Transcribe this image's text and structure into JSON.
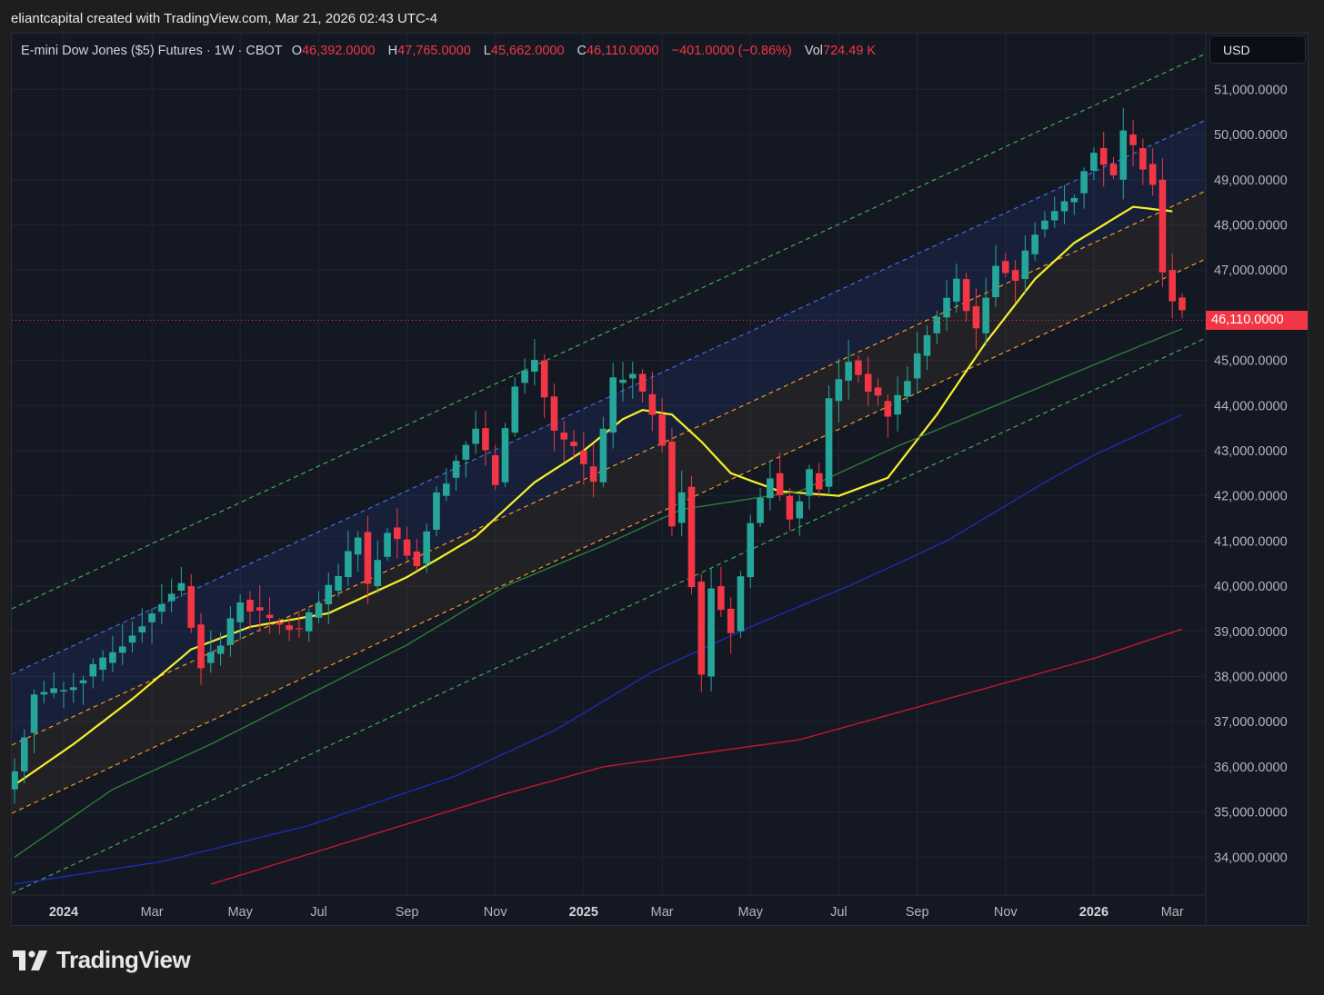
{
  "caption": "eliantcapital created with TradingView.com, Mar 21, 2026 02:43 UTC-4",
  "legend": {
    "symbol": "E-mini Dow Jones ($5) Futures · 1W · CBOT",
    "open_label": "O",
    "open": "46,392.0000",
    "high_label": "H",
    "high": "47,765.0000",
    "low_label": "L",
    "low": "45,662.0000",
    "close_label": "C",
    "close": "46,110.0000",
    "change": "−401.0000 (−0.86%)",
    "vol_label": "Vol",
    "vol": "724.49 K"
  },
  "currency": "USD",
  "last_price_label": "46,110.0000",
  "brand": "TradingView",
  "colors": {
    "up": "#26a69a",
    "down": "#f23645",
    "ma_fast": "#f5f12a",
    "ma_mid": "#2e7d32",
    "ma_slow": "#1f2bb0",
    "ma_long": "#c0182c"
  },
  "chart_data": {
    "type": "candlestick",
    "timeframe": "1W",
    "y_range": [
      33400,
      51800
    ],
    "y_ticks": [
      "34,000.0000",
      "35,000.0000",
      "36,000.0000",
      "37,000.0000",
      "38,000.0000",
      "39,000.0000",
      "40,000.0000",
      "41,000.0000",
      "42,000.0000",
      "43,000.0000",
      "44,000.0000",
      "45,000.0000",
      "46,000.0000",
      "47,000.0000",
      "48,000.0000",
      "49,000.0000",
      "50,000.0000",
      "51,000.0000"
    ],
    "x_ticks": [
      {
        "label": "2024",
        "bold": true,
        "week": 5
      },
      {
        "label": "Mar",
        "bold": false,
        "week": 14
      },
      {
        "label": "May",
        "bold": false,
        "week": 23
      },
      {
        "label": "Jul",
        "bold": false,
        "week": 31
      },
      {
        "label": "Sep",
        "bold": false,
        "week": 40
      },
      {
        "label": "Nov",
        "bold": false,
        "week": 49
      },
      {
        "label": "2025",
        "bold": true,
        "week": 58
      },
      {
        "label": "Mar",
        "bold": false,
        "week": 66
      },
      {
        "label": "May",
        "bold": false,
        "week": 75
      },
      {
        "label": "Jul",
        "bold": false,
        "week": 84
      },
      {
        "label": "Sep",
        "bold": false,
        "week": 92
      },
      {
        "label": "Nov",
        "bold": false,
        "week": 101
      },
      {
        "label": "2026",
        "bold": true,
        "week": 110
      },
      {
        "label": "Mar",
        "bold": false,
        "week": 118
      }
    ],
    "waypoints": [
      [
        0,
        35900
      ],
      [
        2,
        37600
      ],
      [
        5,
        37700
      ],
      [
        9,
        38300
      ],
      [
        13,
        39200
      ],
      [
        16,
        39900
      ],
      [
        17,
        40000
      ],
      [
        19,
        38300
      ],
      [
        21,
        38700
      ],
      [
        23,
        39700
      ],
      [
        26,
        39200
      ],
      [
        29,
        39000
      ],
      [
        31,
        39600
      ],
      [
        33,
        40200
      ],
      [
        35,
        41200
      ],
      [
        36,
        40000
      ],
      [
        38,
        41300
      ],
      [
        41,
        40500
      ],
      [
        43,
        42000
      ],
      [
        45,
        42800
      ],
      [
        47,
        43500
      ],
      [
        49,
        42300
      ],
      [
        51,
        44500
      ],
      [
        53,
        45000
      ],
      [
        55,
        43400
      ],
      [
        57,
        43000
      ],
      [
        59,
        42300
      ],
      [
        61,
        44500
      ],
      [
        63,
        44700
      ],
      [
        65,
        43800
      ],
      [
        66,
        43200
      ],
      [
        67,
        41400
      ],
      [
        68,
        42200
      ],
      [
        70,
        38000
      ],
      [
        71,
        40000
      ],
      [
        73,
        39000
      ],
      [
        75,
        41400
      ],
      [
        77,
        42500
      ],
      [
        79,
        41500
      ],
      [
        81,
        42500
      ],
      [
        82,
        42200
      ],
      [
        83,
        44100
      ],
      [
        85,
        45000
      ],
      [
        87,
        44400
      ],
      [
        89,
        43800
      ],
      [
        91,
        44600
      ],
      [
        93,
        45600
      ],
      [
        95,
        46300
      ],
      [
        96,
        46800
      ],
      [
        98,
        45600
      ],
      [
        100,
        47200
      ],
      [
        102,
        46800
      ],
      [
        104,
        47900
      ],
      [
        106,
        48300
      ],
      [
        108,
        48700
      ],
      [
        110,
        49700
      ],
      [
        112,
        49000
      ],
      [
        113,
        50000
      ],
      [
        114,
        49700
      ],
      [
        116,
        49000
      ],
      [
        117,
        47000
      ],
      [
        118,
        46400
      ],
      [
        119,
        46110
      ]
    ],
    "moving_averages": [
      {
        "color": "#f5f12a",
        "points": [
          [
            0,
            35600
          ],
          [
            6,
            36500
          ],
          [
            12,
            37500
          ],
          [
            18,
            38600
          ],
          [
            24,
            39100
          ],
          [
            32,
            39400
          ],
          [
            40,
            40200
          ],
          [
            47,
            41100
          ],
          [
            53,
            42300
          ],
          [
            58,
            43000
          ],
          [
            62,
            43700
          ],
          [
            64,
            43900
          ],
          [
            67,
            43800
          ],
          [
            70,
            43200
          ],
          [
            73,
            42500
          ],
          [
            78,
            42100
          ],
          [
            84,
            42000
          ],
          [
            89,
            42400
          ],
          [
            94,
            43800
          ],
          [
            99,
            45400
          ],
          [
            104,
            46800
          ],
          [
            108,
            47600
          ],
          [
            114,
            48400
          ],
          [
            118,
            48300
          ]
        ]
      },
      {
        "color": "#2e7d32",
        "points": [
          [
            0,
            34000
          ],
          [
            10,
            35500
          ],
          [
            20,
            36500
          ],
          [
            30,
            37600
          ],
          [
            40,
            38700
          ],
          [
            50,
            40000
          ],
          [
            60,
            40900
          ],
          [
            68,
            41700
          ],
          [
            74,
            41900
          ],
          [
            80,
            42100
          ],
          [
            90,
            43100
          ],
          [
            100,
            44000
          ],
          [
            110,
            44900
          ],
          [
            119,
            45700
          ]
        ]
      },
      {
        "color": "#1f2bb0",
        "points": [
          [
            0,
            33400
          ],
          [
            15,
            33900
          ],
          [
            30,
            34700
          ],
          [
            45,
            35800
          ],
          [
            55,
            36800
          ],
          [
            65,
            38100
          ],
          [
            75,
            39100
          ],
          [
            85,
            40000
          ],
          [
            95,
            41000
          ],
          [
            105,
            42300
          ],
          [
            110,
            42900
          ],
          [
            119,
            43800
          ]
        ]
      },
      {
        "color": "#c0182c",
        "points": [
          [
            20,
            33400
          ],
          [
            35,
            34400
          ],
          [
            50,
            35400
          ],
          [
            60,
            36000
          ],
          [
            70,
            36300
          ],
          [
            80,
            36600
          ],
          [
            90,
            37200
          ],
          [
            100,
            37800
          ],
          [
            110,
            38400
          ],
          [
            119,
            39050
          ]
        ]
      }
    ]
  }
}
